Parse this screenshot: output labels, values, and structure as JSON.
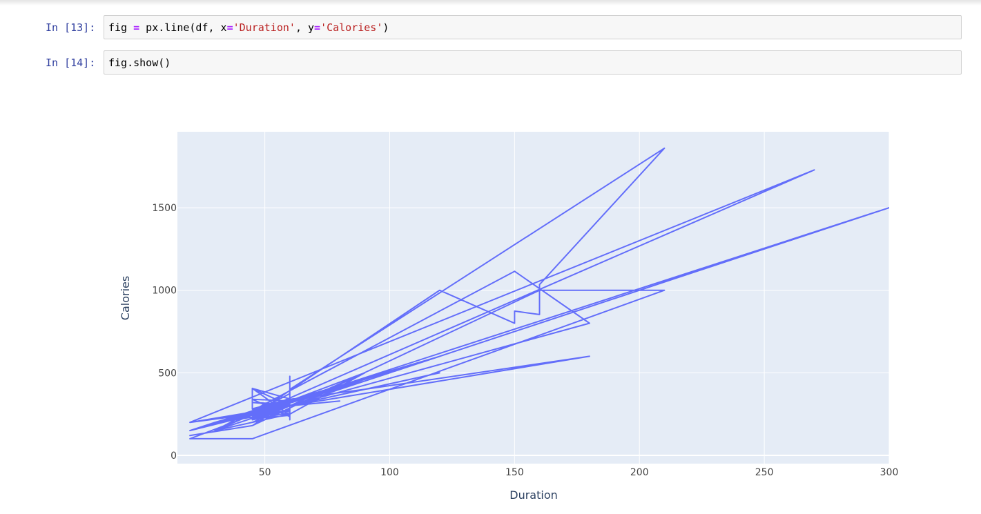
{
  "notebook": {
    "cells": [
      {
        "prompt": "In [13]:",
        "code_tokens": [
          {
            "t": "fig ",
            "c": ""
          },
          {
            "t": "=",
            "c": "op"
          },
          {
            "t": " px.line(df, x",
            "c": ""
          },
          {
            "t": "=",
            "c": "op"
          },
          {
            "t": "'Duration'",
            "c": "str"
          },
          {
            "t": ", y",
            "c": ""
          },
          {
            "t": "=",
            "c": "op"
          },
          {
            "t": "'Calories'",
            "c": "str"
          },
          {
            "t": ")",
            "c": ""
          }
        ]
      },
      {
        "prompt": "In [14]:",
        "code_tokens": [
          {
            "t": "fig.show()",
            "c": ""
          }
        ]
      }
    ]
  },
  "chart_data": {
    "type": "line",
    "title": "",
    "xlabel": "Duration",
    "ylabel": "Calories",
    "xlim": [
      15,
      300
    ],
    "ylim": [
      -50,
      1960
    ],
    "xticks": [
      50,
      100,
      150,
      200,
      250,
      300
    ],
    "yticks": [
      0,
      500,
      1000,
      1500
    ],
    "grid": true,
    "colors": {
      "line": "#636efa",
      "plot_bg": "#e5ecf6",
      "grid": "#ffffff"
    },
    "series": [
      {
        "x": [
          60,
          60,
          60,
          45,
          45,
          60,
          60,
          45,
          30,
          60,
          60,
          60,
          60,
          60,
          60,
          60,
          60,
          45,
          60,
          45,
          60,
          45,
          60,
          45,
          60,
          60,
          60,
          60,
          60,
          60,
          60,
          60,
          60,
          60,
          45,
          60,
          60,
          60,
          60,
          60,
          60,
          60,
          60,
          60,
          45,
          60,
          60,
          60,
          60,
          60,
          60,
          80,
          60,
          60,
          60,
          60,
          60,
          60,
          60,
          210,
          160,
          160,
          160,
          160,
          160,
          160,
          160,
          160,
          160,
          150,
          150,
          150,
          150,
          150,
          150,
          150,
          150,
          150,
          120,
          45,
          60,
          60,
          60,
          60,
          60,
          60,
          60,
          60,
          60,
          180,
          150,
          180,
          150,
          30,
          60,
          60,
          60,
          60,
          60,
          60,
          90,
          90,
          90,
          90,
          90,
          90,
          90,
          90,
          90,
          90,
          90,
          60,
          60,
          60,
          60,
          60,
          60,
          60,
          60,
          60,
          45,
          60,
          60,
          60,
          60,
          60,
          60,
          60,
          60,
          60,
          60,
          60,
          60,
          60,
          60,
          60,
          60,
          45,
          60,
          60,
          20,
          45,
          210,
          160,
          160,
          45,
          20,
          45,
          60,
          60,
          45,
          45,
          30,
          45,
          45,
          60,
          60,
          180,
          90,
          60,
          30,
          30,
          45,
          60,
          45,
          60,
          30,
          60,
          60,
          90,
          60,
          60,
          60,
          60,
          45,
          60,
          60,
          20,
          30,
          60,
          90,
          60,
          60,
          90,
          60,
          30,
          45,
          60,
          45,
          20,
          45,
          20,
          270,
          30,
          45,
          20,
          30,
          45,
          20,
          90,
          60,
          120,
          30,
          45,
          20,
          30,
          45,
          20,
          60,
          60,
          45,
          20,
          45,
          30,
          60,
          45,
          60,
          30,
          45,
          20,
          60,
          45,
          60,
          75,
          75,
          75,
          75,
          75,
          75,
          120,
          90,
          60,
          120,
          30,
          45,
          20,
          90,
          90,
          120,
          60,
          20,
          45,
          60,
          60,
          20,
          60,
          60,
          60,
          60,
          60,
          120,
          45,
          20,
          90,
          30,
          45,
          90,
          60,
          60,
          45,
          20,
          45,
          120,
          90,
          45,
          60,
          90,
          45,
          45,
          60,
          45,
          45,
          60,
          20,
          45,
          30,
          45,
          60,
          45,
          45,
          60,
          90,
          45,
          60,
          120,
          45,
          300,
          60,
          120,
          60,
          60,
          90,
          45,
          20,
          60,
          60,
          60,
          60,
          60,
          45,
          60,
          60,
          60,
          60,
          60,
          60,
          60,
          45,
          30,
          30,
          60,
          60,
          90,
          60,
          60,
          60,
          60,
          60,
          60,
          90,
          60,
          60,
          60,
          60,
          60,
          60,
          60,
          60,
          60,
          60,
          60,
          60,
          60,
          60,
          60,
          60,
          60,
          60,
          60,
          60,
          60,
          60,
          60,
          60,
          60,
          60,
          45,
          60,
          60,
          60,
          60,
          60,
          60,
          60,
          60,
          60,
          60,
          60,
          60,
          60,
          60,
          60,
          60,
          60,
          60,
          60,
          60,
          60,
          60,
          60
        ],
        "y": [
          409.1,
          479.0,
          340.0,
          282.4,
          406.0,
          300.0,
          374.0,
          253.3,
          195.1,
          269.0,
          329.3,
          250.7,
          345.3,
          379.3,
          275.0,
          215.2,
          300.0,
          220.0,
          323.0,
          280.0,
          342.0,
          406.0,
          243.0,
          220.0,
          329.3,
          364.2,
          282.0,
          300.0,
          246.0,
          334.5,
          250.0,
          241.0,
          279.9,
          280.0,
          215.2,
          260.0,
          364.2,
          280.0,
          340.0,
          240.0,
          261.0,
          280.0,
          290.0,
          310.2,
          320.4,
          300.0,
          266.0,
          229.2,
          300.0,
          362.3,
          300.0,
          329.3,
          300.0,
          400.0,
          300.0,
          300.0,
          300.0,
          300.0,
          400.0,
          1860.4,
          1035.0,
          1035.0,
          1035.0,
          1035.0,
          1035.0,
          853.0,
          853.0,
          853.0,
          853.0,
          873.8,
          873.8,
          873.8,
          800.0,
          800.0,
          800.0,
          800.0,
          800.0,
          800.0,
          1000.1,
          240.9,
          250.4,
          250.4,
          270.4,
          270.4,
          280.9,
          280.9,
          382.2,
          382.2,
          300.0,
          800.4,
          1115.0,
          800.0,
          1115.0,
          150.0,
          300.0,
          330.0,
          330.0,
          330.0,
          330.0,
          330.0,
          500.4,
          500.4,
          500.4,
          500.4,
          500.4,
          500.4,
          500.4,
          500.4,
          500.4,
          500.4,
          500.4,
          300.0,
          300.0,
          280.0,
          280.0,
          280.0,
          280.0,
          280.0,
          280.0,
          270.0,
          240.0,
          300.0,
          300.0,
          280.0,
          280.0,
          280.0,
          280.0,
          280.0,
          300.0,
          300.0,
          300.0,
          280.0,
          280.0,
          300.0,
          300.0,
          250.0,
          235.0,
          340.0,
          329.3,
          329.3,
          100.7,
          100.7,
          1000.0,
          1000.0,
          1000.0,
          180.1,
          120.0,
          180.1,
          329.3,
          329.3,
          270.0,
          270.0,
          150.0,
          247.0,
          247.0,
          300.0,
          300.0,
          600.1,
          400.0,
          340.0,
          195.1,
          195.1,
          270.0,
          300.0,
          200.0,
          250.0,
          150.0,
          300.0,
          300.0,
          500.0,
          250.0,
          300.0,
          300.0,
          300.0,
          250.0,
          300.0,
          300.0,
          200.0,
          220.0,
          300.0,
          450.0,
          300.0,
          300.0,
          500.0,
          300.0,
          200.0,
          250.0,
          300.0,
          250.0,
          200.0,
          250.0,
          200.0,
          1729.0,
          150.0,
          250.0,
          150.0,
          200.0,
          250.0,
          150.0,
          450.0,
          300.0,
          500.0,
          200.0,
          250.0,
          150.0,
          200.0,
          250.0,
          150.0,
          300.0,
          300.0,
          250.0,
          150.0,
          250.0,
          200.0,
          300.0,
          250.0,
          300.0,
          200.0,
          250.0,
          150.0,
          300.0,
          250.0,
          300.0,
          400.0,
          400.0,
          400.0,
          400.0,
          400.0,
          400.0,
          600.0,
          450.0,
          300.0,
          600.0,
          200.0,
          250.0,
          150.0,
          450.0,
          450.0,
          600.0,
          300.0,
          150.0,
          250.0,
          300.0,
          300.0,
          150.0,
          300.0,
          300.0,
          300.0,
          300.0,
          300.0,
          600.0,
          250.0,
          150.0,
          450.0,
          200.0,
          250.0,
          450.0,
          300.0,
          300.0,
          250.0,
          150.0,
          250.0,
          600.0,
          450.0,
          250.0,
          300.0,
          450.0,
          250.0,
          250.0,
          300.0,
          250.0,
          250.0,
          300.0,
          150.0,
          250.0,
          200.0,
          250.0,
          300.0,
          250.0,
          250.0,
          300.0,
          450.0,
          250.0,
          300.0,
          600.0,
          250.0,
          1500.0,
          300.0,
          600.0,
          300.0,
          300.0,
          450.0,
          250.0,
          150.0,
          300.0,
          300.0,
          300.0,
          300.0,
          300.0,
          250.0,
          300.0,
          300.0,
          300.0,
          300.0,
          300.0,
          300.0,
          300.0,
          250.0,
          200.0,
          200.0,
          300.0,
          300.0,
          450.0,
          300.0,
          300.0,
          300.0,
          300.0,
          300.0,
          300.0,
          450.0,
          300.0,
          300.0,
          300.0,
          300.0,
          300.0,
          300.0,
          300.0,
          300.0,
          300.0,
          300.0,
          300.0,
          300.0,
          300.0,
          300.0,
          300.0,
          300.0,
          300.0,
          300.0,
          300.0,
          300.0,
          300.0,
          300.0,
          300.0,
          300.0,
          300.0,
          300.0,
          250.0,
          300.0,
          300.0,
          300.0,
          300.0,
          300.0,
          300.0,
          300.0,
          300.0,
          300.0,
          300.0,
          300.0,
          300.0,
          300.0,
          300.0,
          300.0,
          300.0,
          300.0,
          300.0,
          300.0,
          300.0,
          300.0,
          300.0,
          300.0
        ]
      }
    ]
  }
}
